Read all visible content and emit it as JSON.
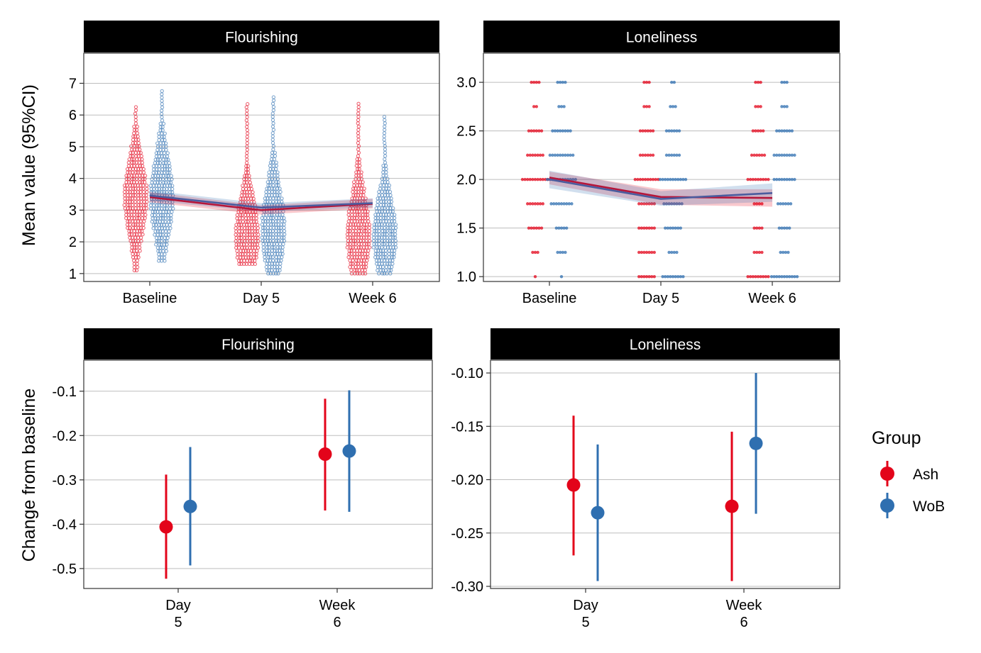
{
  "y_titles": {
    "top": "Mean value (95%CI)",
    "bottom": "Change from baseline"
  },
  "legend": {
    "title": "Group",
    "items": [
      {
        "label": "Ash",
        "color": "#E3041A"
      },
      {
        "label": "WoB",
        "color": "#2F6FB0"
      }
    ]
  },
  "chart_data": [
    {
      "type": "scatter",
      "strip": "Flourishing",
      "categories": [
        "Baseline",
        "Day 5",
        "Week 6"
      ],
      "ylim": [
        0.75,
        7.95
      ],
      "yticks": [
        "1",
        "2",
        "3",
        "4",
        "5",
        "6",
        "7"
      ],
      "grid": true,
      "series": [
        {
          "name": "Ash",
          "mean": [
            3.41,
            3.0,
            3.2
          ],
          "ci_low": [
            3.25,
            2.86,
            3.05
          ],
          "ci_high": [
            3.57,
            3.15,
            3.36
          ],
          "distribution": [
            {
              "min": 1.1,
              "max": 6.3,
              "mode": 3.4
            },
            {
              "min": 1.3,
              "max": 6.4,
              "mode": 2.2
            },
            {
              "min": 1.0,
              "max": 6.4,
              "mode": 2.2
            }
          ]
        },
        {
          "name": "WoB",
          "mean": [
            3.46,
            3.08,
            3.22
          ],
          "ci_low": [
            3.3,
            2.95,
            3.08
          ],
          "ci_high": [
            3.62,
            3.22,
            3.37
          ],
          "distribution": [
            {
              "min": 1.4,
              "max": 6.8,
              "mode": 3.4
            },
            {
              "min": 1.0,
              "max": 6.6,
              "mode": 2.4
            },
            {
              "min": 1.0,
              "max": 6.0,
              "mode": 2.2
            }
          ]
        }
      ]
    },
    {
      "type": "scatter",
      "strip": "Loneliness",
      "categories": [
        "Baseline",
        "Day 5",
        "Week 6"
      ],
      "ylim": [
        0.95,
        3.3
      ],
      "yticks": [
        "1.0",
        "1.5",
        "2.0",
        "2.5",
        "3.0"
      ],
      "grid": true,
      "series": [
        {
          "name": "Ash",
          "mean": [
            2.02,
            1.82,
            1.81
          ],
          "ci_low": [
            1.95,
            1.74,
            1.72
          ],
          "ci_high": [
            2.08,
            1.9,
            1.9
          ],
          "distribution": [
            {
              "values": [
                1,
                1.25,
                1.5,
                1.75,
                2,
                2.25,
                2.5,
                2.75,
                3
              ],
              "counts": [
                1,
                3,
                6,
                7,
                11,
                7,
                6,
                2,
                4
              ]
            },
            {
              "values": [
                1,
                1.25,
                1.5,
                1.75,
                2,
                2.25,
                2.5,
                2.75,
                3
              ],
              "counts": [
                7,
                7,
                7,
                7,
                10,
                6,
                6,
                3,
                3
              ]
            },
            {
              "values": [
                1,
                1.25,
                1.5,
                1.75,
                2,
                2.25,
                2.5,
                2.75,
                3
              ],
              "counts": [
                9,
                4,
                4,
                4,
                9,
                6,
                5,
                3,
                3
              ]
            }
          ]
        },
        {
          "name": "WoB",
          "mean": [
            2.0,
            1.8,
            1.86
          ],
          "ci_low": [
            1.91,
            1.73,
            1.77
          ],
          "ci_high": [
            2.09,
            1.88,
            1.96
          ],
          "distribution": [
            {
              "values": [
                1,
                1.25,
                1.5,
                1.75,
                2,
                2.25,
                2.5,
                2.75,
                3
              ],
              "counts": [
                1,
                4,
                5,
                9,
                12,
                10,
                8,
                3,
                4
              ]
            },
            {
              "values": [
                1,
                1.25,
                1.5,
                1.75,
                2,
                2.25,
                2.5,
                2.75,
                3
              ],
              "counts": [
                9,
                4,
                7,
                8,
                11,
                6,
                6,
                3,
                2
              ]
            },
            {
              "values": [
                1,
                1.25,
                1.5,
                1.75,
                2,
                2.25,
                2.5,
                2.75,
                3
              ],
              "counts": [
                11,
                4,
                5,
                6,
                9,
                9,
                7,
                3,
                3
              ]
            }
          ]
        }
      ]
    },
    {
      "type": "scatter",
      "strip": "Flourishing",
      "categories": [
        "Day\n5",
        "Week\n6"
      ],
      "ylim": [
        -0.545,
        -0.03
      ],
      "yticks": [
        "-0.1",
        "-0.2",
        "-0.3",
        "-0.4",
        "-0.5"
      ],
      "grid": true,
      "series": [
        {
          "name": "Ash",
          "values": [
            -0.406,
            -0.242
          ],
          "ci_low": [
            -0.523,
            -0.369
          ],
          "ci_high": [
            -0.288,
            -0.117
          ]
        },
        {
          "name": "WoB",
          "values": [
            -0.36,
            -0.235
          ],
          "ci_low": [
            -0.493,
            -0.372
          ],
          "ci_high": [
            -0.226,
            -0.098
          ]
        }
      ]
    },
    {
      "type": "scatter",
      "strip": "Loneliness",
      "categories": [
        "Day\n5",
        "Week\n6"
      ],
      "ylim": [
        -0.302,
        -0.088
      ],
      "yticks": [
        "-0.10",
        "-0.15",
        "-0.20",
        "-0.25",
        "-0.30"
      ],
      "grid": true,
      "series": [
        {
          "name": "Ash",
          "values": [
            -0.205,
            -0.225
          ],
          "ci_low": [
            -0.271,
            -0.295
          ],
          "ci_high": [
            -0.14,
            -0.155
          ]
        },
        {
          "name": "WoB",
          "values": [
            -0.231,
            -0.166
          ],
          "ci_low": [
            -0.295,
            -0.232
          ],
          "ci_high": [
            -0.167,
            -0.1
          ]
        }
      ]
    }
  ]
}
